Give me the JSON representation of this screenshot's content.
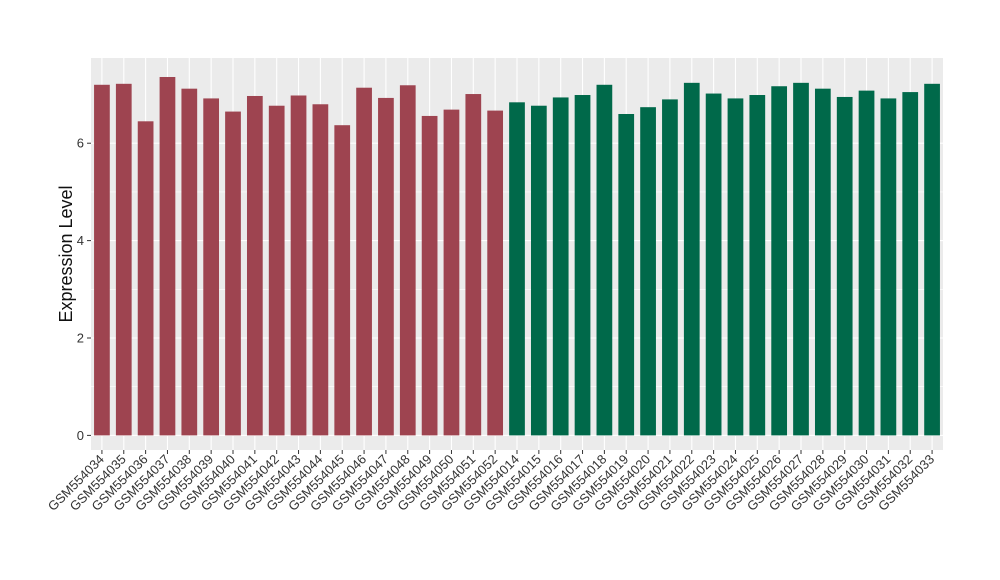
{
  "chart_data": {
    "type": "bar",
    "xlabel": "",
    "ylabel": "Expression Level",
    "ylim": [
      -0.3,
      7.75
    ],
    "y_ticks": [
      0,
      2,
      4,
      6
    ],
    "grid": true,
    "legend": "none",
    "background_color": "#EBEBEB",
    "gridline_color": "#FFFFFF",
    "categories": [
      "GSM554034",
      "GSM554035",
      "GSM554036",
      "GSM554037",
      "GSM554038",
      "GSM554039",
      "GSM554040",
      "GSM554041",
      "GSM554042",
      "GSM554043",
      "GSM554044",
      "GSM554045",
      "GSM554046",
      "GSM554047",
      "GSM554048",
      "GSM554049",
      "GSM554050",
      "GSM554051",
      "GSM554052",
      "GSM554014",
      "GSM554015",
      "GSM554016",
      "GSM554017",
      "GSM554018",
      "GSM554019",
      "GSM554020",
      "GSM554021",
      "GSM554022",
      "GSM554023",
      "GSM554024",
      "GSM554025",
      "GSM554026",
      "GSM554027",
      "GSM554028",
      "GSM554029",
      "GSM554030",
      "GSM554031",
      "GSM554032",
      "GSM554033"
    ],
    "values": [
      7.2,
      7.22,
      6.45,
      7.36,
      7.12,
      6.92,
      6.65,
      6.97,
      6.77,
      6.98,
      6.8,
      6.37,
      7.14,
      6.93,
      7.19,
      6.56,
      6.69,
      7.01,
      6.67,
      6.84,
      6.77,
      6.94,
      6.99,
      7.2,
      6.6,
      6.74,
      6.9,
      7.24,
      7.02,
      6.92,
      6.99,
      7.17,
      7.24,
      7.12,
      6.95,
      7.08,
      6.92,
      7.05,
      7.22
    ],
    "bar_colors": [
      "#9E4450",
      "#9E4450",
      "#9E4450",
      "#9E4450",
      "#9E4450",
      "#9E4450",
      "#9E4450",
      "#9E4450",
      "#9E4450",
      "#9E4450",
      "#9E4450",
      "#9E4450",
      "#9E4450",
      "#9E4450",
      "#9E4450",
      "#9E4450",
      "#9E4450",
      "#9E4450",
      "#9E4450",
      "#00694A",
      "#00694A",
      "#00694A",
      "#00694A",
      "#00694A",
      "#00694A",
      "#00694A",
      "#00694A",
      "#00694A",
      "#00694A",
      "#00694A",
      "#00694A",
      "#00694A",
      "#00694A",
      "#00694A",
      "#00694A",
      "#00694A",
      "#00694A",
      "#00694A",
      "#00694A"
    ]
  }
}
